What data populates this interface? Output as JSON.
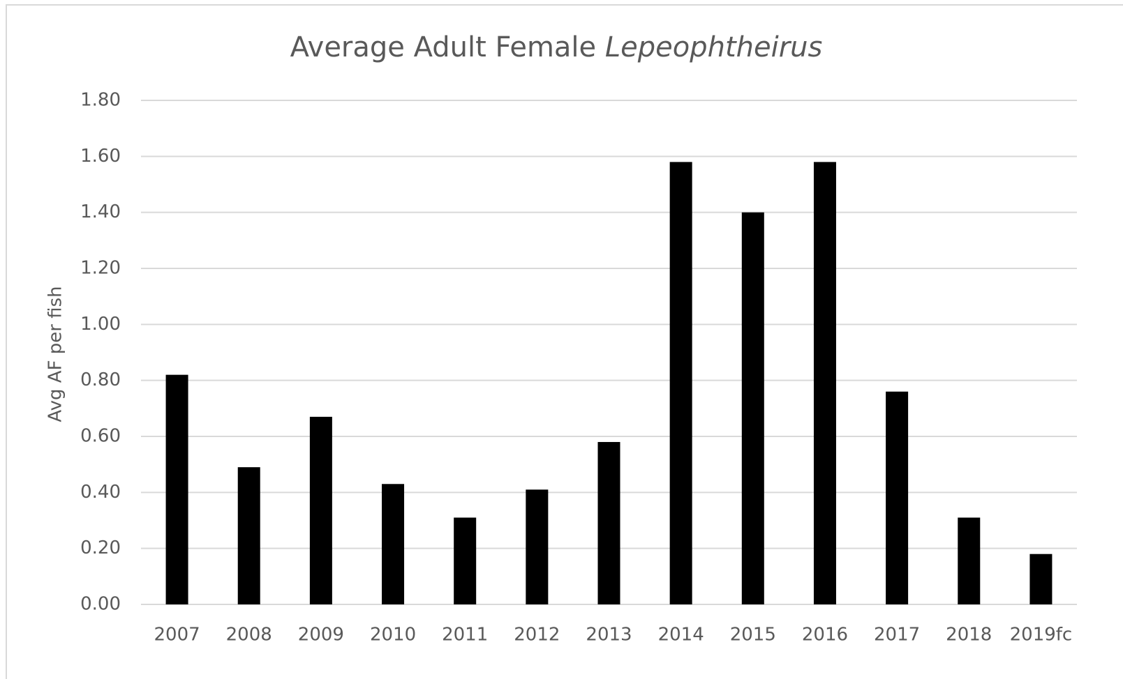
{
  "chart_data": {
    "type": "bar",
    "title": "Average Adult Female Lepeophtheirus",
    "y_label": "Avg AF per fish",
    "categories": [
      "2007",
      "2008",
      "2009",
      "2010",
      "2011",
      "2012",
      "2013",
      "2014",
      "2015",
      "2016",
      "2017",
      "2018",
      "2019fc"
    ],
    "values": [
      0.82,
      0.49,
      0.67,
      0.43,
      0.31,
      0.41,
      0.58,
      1.58,
      1.4,
      1.58,
      0.76,
      0.31,
      0.18
    ],
    "color": "#000000",
    "ylim": [
      0,
      1.8
    ],
    "yticks": [
      {
        "value": 0,
        "label": "0.00"
      },
      {
        "value": 0.2,
        "label": "0.20"
      },
      {
        "value": 0.4,
        "label": "0.40"
      },
      {
        "value": 0.6,
        "label": "0.60"
      },
      {
        "value": 0.8,
        "label": "0.80"
      },
      {
        "value": 1,
        "label": "1.00"
      },
      {
        "value": 1.2,
        "label": "1.20"
      },
      {
        "value": 1.4,
        "label": "1.40"
      },
      {
        "value": 1.6,
        "label": "1.60"
      },
      {
        "value": 1.8,
        "label": "1.80"
      }
    ],
    "grid": true
  }
}
